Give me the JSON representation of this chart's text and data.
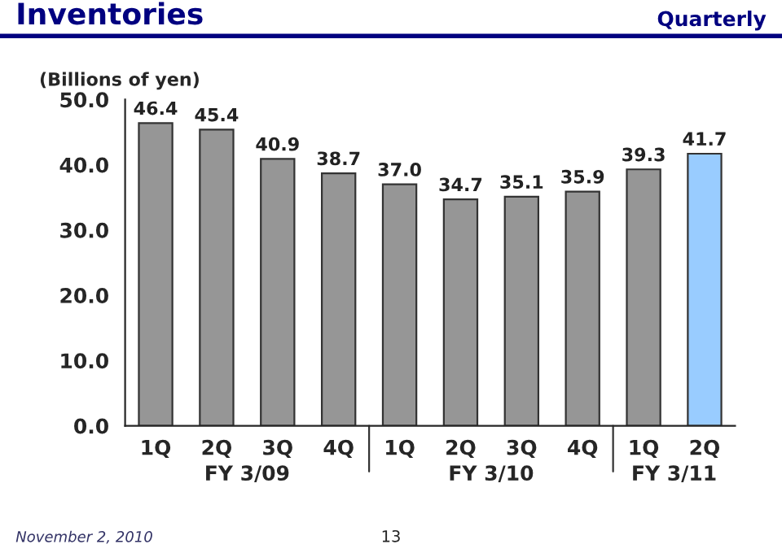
{
  "chart_data": {
    "type": "bar",
    "title": "Inventories",
    "subtitle": "Quarterly",
    "ylabel": "(Billions of yen)",
    "categories": [
      "1Q",
      "2Q",
      "3Q",
      "4Q",
      "1Q",
      "2Q",
      "3Q",
      "4Q",
      "1Q",
      "2Q"
    ],
    "values": [
      46.4,
      45.4,
      40.9,
      38.7,
      37.0,
      34.7,
      35.1,
      35.9,
      39.3,
      41.7
    ],
    "colors": [
      "#969696",
      "#969696",
      "#969696",
      "#969696",
      "#969696",
      "#969696",
      "#969696",
      "#969696",
      "#969696",
      "#99ccff"
    ],
    "value_labels": [
      "46.4",
      "45.4",
      "40.9",
      "38.7",
      "37.0",
      "34.7",
      "35.1",
      "35.9",
      "39.3",
      "41.7"
    ],
    "ylim": [
      0,
      50
    ],
    "yticks": [
      {
        "value": 0,
        "label": "0.0"
      },
      {
        "value": 10,
        "label": "10.0"
      },
      {
        "value": 20,
        "label": "20.0"
      },
      {
        "value": 30,
        "label": "30.0"
      },
      {
        "value": 40,
        "label": "40.0"
      },
      {
        "value": 50,
        "label": "50.0"
      }
    ],
    "grid": false,
    "annotations": [
      "FY 3/09",
      "FY 3/10",
      "FY 3/11",
      "November 2, 2010",
      "13"
    ]
  }
}
